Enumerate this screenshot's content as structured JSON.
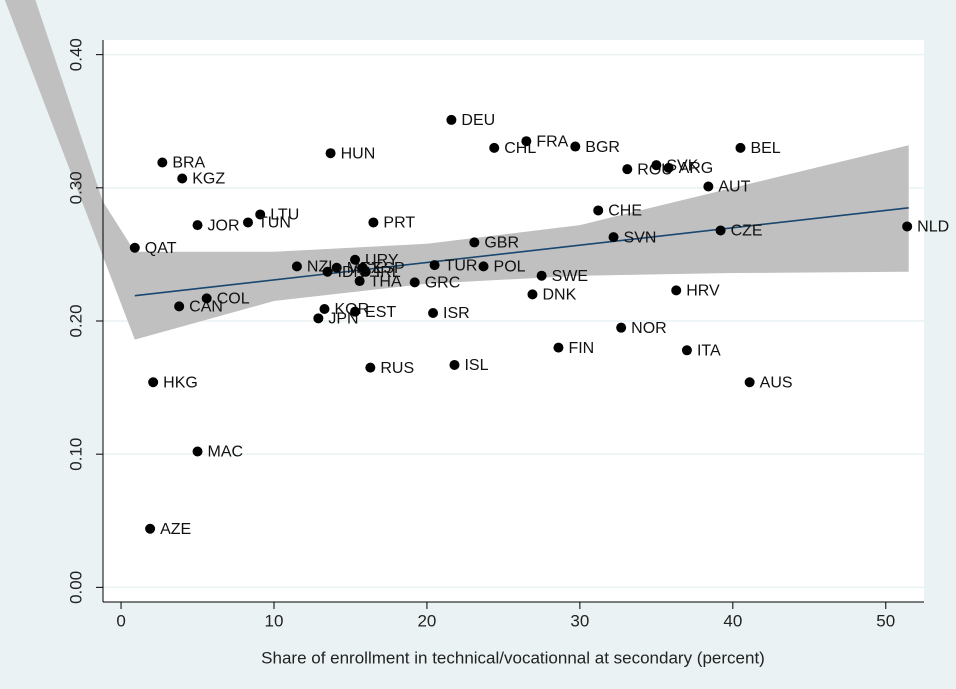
{
  "chart_data": {
    "type": "scatter",
    "x_label": "Share of enrollment in technical/vocationnal at secondary (percent)",
    "xlim": [
      -1.18,
      52.5
    ],
    "ylim": [
      -0.011,
      0.411
    ],
    "xticks": [
      0,
      10,
      20,
      30,
      40,
      50
    ],
    "yticks": [
      {
        "value": 0,
        "label": "0.00"
      },
      {
        "value": 0.1,
        "label": "0.10"
      },
      {
        "value": 0.2,
        "label": "0.20"
      },
      {
        "value": 0.3,
        "label": "0.30"
      },
      {
        "value": 0.4,
        "label": "0.40"
      }
    ],
    "grid": true,
    "color": "#000000",
    "labels": [
      "QAT",
      "BRA",
      "KGZ",
      "JOR",
      "LTU",
      "TUN",
      "CAN",
      "COL",
      "HKG",
      "MAC",
      "AZE",
      "HUN",
      "MEX",
      "PRT",
      "NZL",
      "IDN",
      "URY",
      "ESP",
      "THA",
      "IRL",
      "KOR",
      "JPN",
      "EST",
      "RUS",
      "DEU",
      "CHL",
      "FRA",
      "BGR",
      "GBR",
      "TUR",
      "POL",
      "GRC",
      "ISR",
      "ISL",
      "SWE",
      "DNK",
      "FIN",
      "CHE",
      "ROU",
      "SVK",
      "ARG",
      "SVN",
      "NOR",
      "AUT",
      "BEL",
      "CZE",
      "HRV",
      "ITA",
      "AUS",
      "NLD"
    ],
    "x": [
      0.9,
      2.7,
      4.0,
      5.0,
      9.1,
      8.3,
      3.8,
      5.6,
      2.1,
      5.0,
      1.9,
      13.7,
      14.1,
      16.5,
      11.5,
      13.5,
      15.3,
      15.8,
      15.6,
      16.0,
      13.3,
      12.9,
      15.3,
      16.3,
      21.6,
      24.4,
      26.5,
      29.7,
      23.1,
      20.5,
      23.7,
      19.2,
      20.4,
      21.8,
      27.5,
      26.9,
      28.6,
      31.2,
      33.1,
      35.0,
      35.8,
      32.2,
      32.7,
      38.4,
      40.5,
      39.2,
      36.3,
      37.0,
      41.1,
      51.4
    ],
    "y": [
      0.255,
      0.319,
      0.307,
      0.272,
      0.28,
      0.274,
      0.211,
      0.217,
      0.154,
      0.102,
      0.044,
      0.326,
      0.24,
      0.274,
      0.241,
      0.237,
      0.246,
      0.24,
      0.23,
      0.237,
      0.209,
      0.202,
      0.207,
      0.165,
      0.351,
      0.33,
      0.335,
      0.331,
      0.259,
      0.242,
      0.241,
      0.229,
      0.206,
      0.167,
      0.234,
      0.22,
      0.18,
      0.283,
      0.314,
      0.317,
      0.315,
      0.263,
      0.195,
      0.301,
      0.33,
      0.268,
      0.223,
      0.178,
      0.154,
      0.271
    ],
    "fit_line": {
      "color": "#1a476f",
      "x": [
        0.9,
        51.5
      ],
      "y": [
        0.219,
        0.285
      ]
    },
    "band": {
      "color": "#c0c0c0",
      "upper": {
        "x": [
          -5.6,
          -1.2,
          0.9,
          10,
          20,
          30,
          40,
          51.5
        ],
        "y": [
          0.441,
          0.29,
          0.252,
          0.252,
          0.258,
          0.272,
          0.3,
          0.332
        ]
      },
      "lower": {
        "x": [
          -7.6,
          0.9,
          10,
          20,
          30,
          40,
          51.5
        ],
        "y": [
          0.441,
          0.186,
          0.215,
          0.228,
          0.234,
          0.236,
          0.237
        ]
      }
    }
  }
}
